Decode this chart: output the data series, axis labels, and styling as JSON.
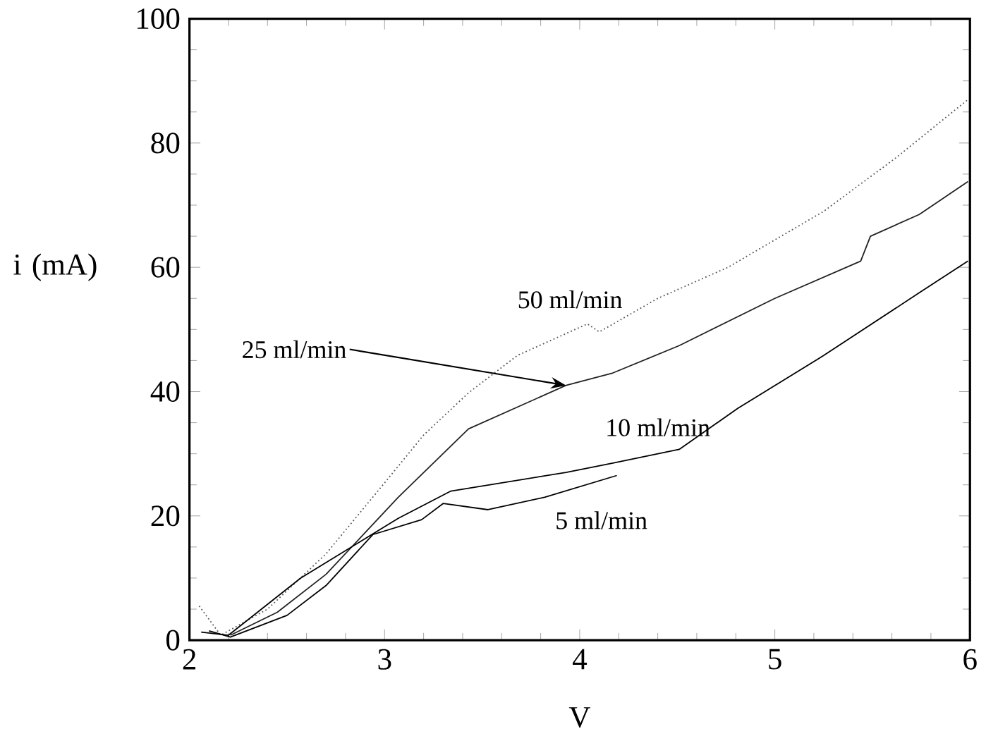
{
  "chart_data": {
    "type": "line",
    "xlabel": "V",
    "ylabel": "i (mA)",
    "xlim": [
      2,
      6
    ],
    "ylim": [
      0,
      100
    ],
    "xticks": [
      2,
      3,
      4,
      5,
      6
    ],
    "yticks": [
      0,
      20,
      40,
      60,
      80,
      100
    ],
    "marker": "none",
    "annotations": [
      {
        "text": "50 ml/min",
        "x": 3.95,
        "y": 50
      },
      {
        "text": "25 ml/min",
        "x": 3.93,
        "y": 41
      },
      {
        "text": "10 ml/min",
        "x": 4.4,
        "y": 30
      },
      {
        "text": "5 ml/min",
        "x": 4.0,
        "y": 24.7
      }
    ],
    "series": [
      {
        "color": "#555555",
        "line_style": "dotted",
        "x": [
          2.05,
          2.16,
          2.4,
          2.7,
          3.01,
          3.2,
          3.43,
          3.68,
          4.04,
          4.1,
          4.4,
          4.76,
          5.25,
          5.62,
          5.99
        ],
        "values": [
          5.5,
          0.8,
          5,
          13.9,
          25.7,
          33,
          39.8,
          45.8,
          50.9,
          49.6,
          55,
          60,
          69,
          77.6,
          87
        ]
      },
      {
        "color": "#222222",
        "line_style": "solid",
        "x": [
          2.21,
          2.45,
          2.7,
          3.07,
          3.43,
          3.93,
          4.17,
          4.51,
          5.0,
          5.44,
          5.49,
          5.74,
          5.99
        ],
        "values": [
          0.8,
          4.5,
          10.6,
          23,
          34,
          41,
          43,
          47.4,
          55,
          61,
          65,
          68.5,
          73.8
        ]
      },
      {
        "color": "#000000",
        "line_style": "solid",
        "x": [
          2.06,
          2.2,
          2.57,
          3.07,
          3.34,
          3.93,
          4.17,
          4.51,
          4.81,
          5.25,
          5.74,
          5.99
        ],
        "values": [
          1.3,
          0.8,
          10,
          19.6,
          24,
          27,
          28.5,
          30.7,
          37.3,
          45.8,
          55.9,
          61
        ]
      },
      {
        "color": "#000000",
        "line_style": "solid",
        "x": [
          2.1,
          2.21,
          2.5,
          2.7,
          2.94,
          3.19,
          3.3,
          3.53,
          3.82,
          4.19
        ],
        "values": [
          1.5,
          0.5,
          4,
          8.8,
          17,
          19.4,
          22,
          21,
          23,
          26.5
        ]
      }
    ]
  }
}
